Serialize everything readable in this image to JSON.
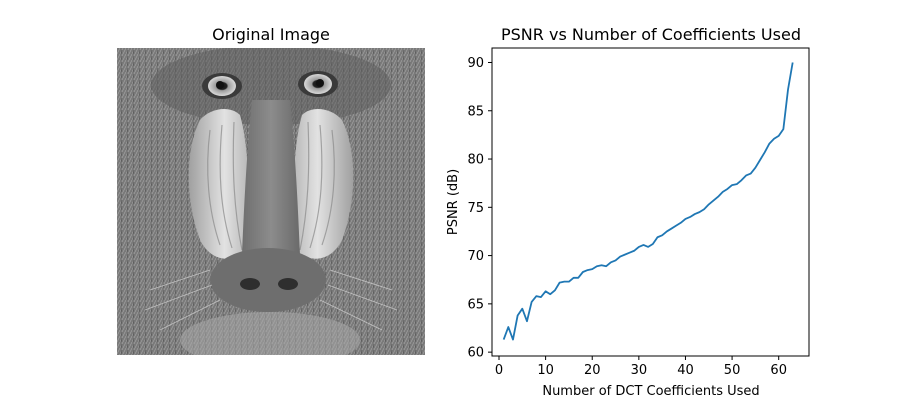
{
  "figure": {
    "background": "#ffffff"
  },
  "image_panel": {
    "title": "Original Image",
    "image_subject": "mandrill-face-grayscale"
  },
  "chart_data": {
    "type": "line",
    "title": "PSNR vs Number of Coefficients Used",
    "xlabel": "Number of DCT Coefficients Used",
    "ylabel": "PSNR (dB)",
    "xlim": [
      -1.5,
      66.5
    ],
    "ylim": [
      59.6,
      91.5
    ],
    "xticks": [
      0,
      10,
      20,
      30,
      40,
      50,
      60
    ],
    "yticks": [
      60,
      65,
      70,
      75,
      80,
      85,
      90
    ],
    "grid": false,
    "series": [
      {
        "color": "#1f77b4",
        "x": [
          1,
          2,
          3,
          4,
          5,
          6,
          7,
          8,
          9,
          10,
          11,
          12,
          13,
          14,
          15,
          16,
          17,
          18,
          19,
          20,
          21,
          22,
          23,
          24,
          25,
          26,
          27,
          28,
          29,
          30,
          31,
          32,
          33,
          34,
          35,
          36,
          37,
          38,
          39,
          40,
          41,
          42,
          43,
          44,
          45,
          46,
          47,
          48,
          49,
          50,
          51,
          52,
          53,
          54,
          55,
          56,
          57,
          58,
          59,
          60,
          61,
          62,
          63
        ],
        "y": [
          61.3,
          62.6,
          61.3,
          63.8,
          64.5,
          63.2,
          65.2,
          65.8,
          65.7,
          66.3,
          66.0,
          66.4,
          67.2,
          67.3,
          67.3,
          67.7,
          67.7,
          68.3,
          68.5,
          68.6,
          68.9,
          69.0,
          68.9,
          69.3,
          69.5,
          69.9,
          70.1,
          70.3,
          70.5,
          70.9,
          71.1,
          70.9,
          71.2,
          71.9,
          72.1,
          72.5,
          72.8,
          73.1,
          73.4,
          73.8,
          74.0,
          74.3,
          74.5,
          74.8,
          75.3,
          75.7,
          76.1,
          76.6,
          76.9,
          77.3,
          77.4,
          77.8,
          78.3,
          78.5,
          79.1,
          79.9,
          80.7,
          81.6,
          82.1,
          82.4,
          83.1,
          87.2,
          90.0
        ]
      }
    ]
  }
}
